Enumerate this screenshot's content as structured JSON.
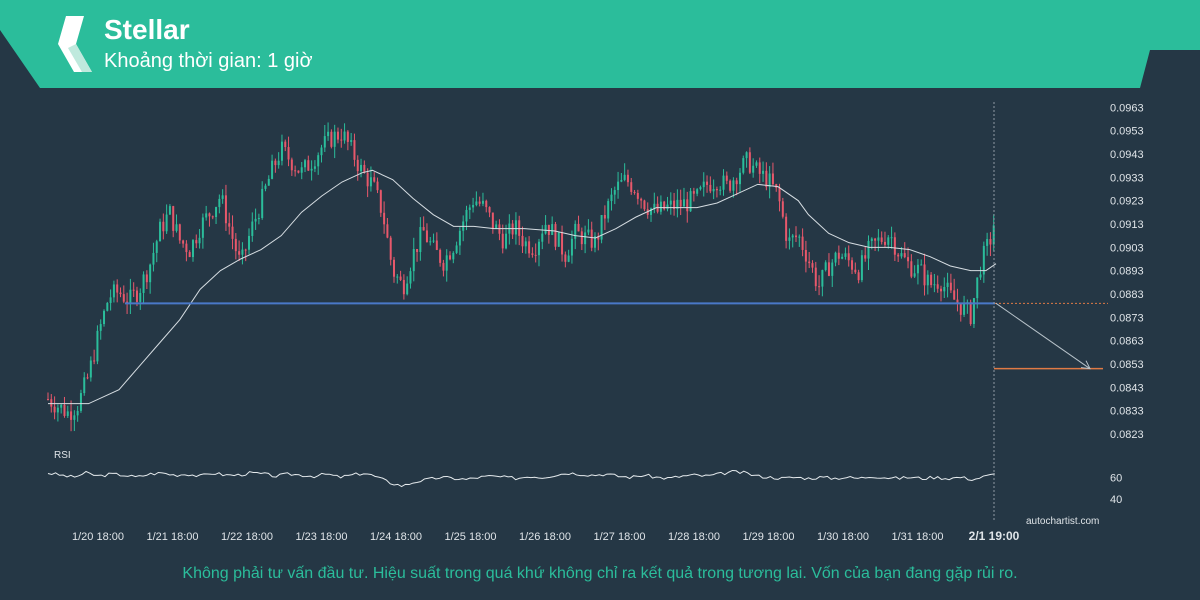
{
  "header": {
    "title": "Stellar",
    "subtitle": "Khoảng thời gian: 1 giờ",
    "brand_color": "#2bbd9b",
    "logo": "stellar-logo-icon"
  },
  "disclaimer": "Không phải tư vấn đầu tư. Hiệu suất trong quá khứ không chỉ ra kết quả trong tương lai. Vốn của bạn đang gặp rủi ro.",
  "watermark": "autochartist.com",
  "colors": {
    "background": "#253745",
    "bull": "#2bbd9b",
    "bear": "#e8586b",
    "ma_line": "#d6dde2",
    "support_line": "#4a78c8",
    "target_line": "#e07a45",
    "forecast_arrow": "#b8c3ca"
  },
  "chart_data": {
    "type": "candlestick",
    "title": "",
    "ylim": [
      0.0817,
      0.0967
    ],
    "y_ticks": [
      "0.0963",
      "0.0953",
      "0.0943",
      "0.0933",
      "0.0923",
      "0.0913",
      "0.0903",
      "0.0893",
      "0.0883",
      "0.0873",
      "0.0863",
      "0.0853",
      "0.0843",
      "0.0833",
      "0.0823"
    ],
    "x_ticks": [
      "1/20 18:00",
      "1/21 18:00",
      "1/22 18:00",
      "1/23 18:00",
      "1/24 18:00",
      "1/25 18:00",
      "1/26 18:00",
      "1/27 18:00",
      "1/28 18:00",
      "1/29 18:00",
      "1/30 18:00",
      "1/31 18:00",
      "2/1 19:00"
    ],
    "highlight_x_label": "2/1 19:00",
    "price_path": [
      {
        "x": 0,
        "y": 0.0838
      },
      {
        "x": 8,
        "y": 0.0835
      },
      {
        "x": 16,
        "y": 0.0832
      },
      {
        "x": 24,
        "y": 0.0836
      },
      {
        "x": 32,
        "y": 0.0848
      },
      {
        "x": 40,
        "y": 0.0866
      },
      {
        "x": 48,
        "y": 0.0882
      },
      {
        "x": 56,
        "y": 0.0884
      },
      {
        "x": 64,
        "y": 0.088
      },
      {
        "x": 72,
        "y": 0.0885
      },
      {
        "x": 80,
        "y": 0.0895
      },
      {
        "x": 88,
        "y": 0.091
      },
      {
        "x": 96,
        "y": 0.0918
      },
      {
        "x": 104,
        "y": 0.0906
      },
      {
        "x": 112,
        "y": 0.0902
      },
      {
        "x": 120,
        "y": 0.0912
      },
      {
        "x": 128,
        "y": 0.0918
      },
      {
        "x": 136,
        "y": 0.0925
      },
      {
        "x": 144,
        "y": 0.091
      },
      {
        "x": 152,
        "y": 0.0895
      },
      {
        "x": 160,
        "y": 0.091
      },
      {
        "x": 168,
        "y": 0.0922
      },
      {
        "x": 176,
        "y": 0.0935
      },
      {
        "x": 184,
        "y": 0.0945
      },
      {
        "x": 192,
        "y": 0.094
      },
      {
        "x": 200,
        "y": 0.0935
      },
      {
        "x": 208,
        "y": 0.094
      },
      {
        "x": 216,
        "y": 0.0946
      },
      {
        "x": 224,
        "y": 0.095
      },
      {
        "x": 232,
        "y": 0.0952
      },
      {
        "x": 240,
        "y": 0.0944
      },
      {
        "x": 248,
        "y": 0.0935
      },
      {
        "x": 256,
        "y": 0.093
      },
      {
        "x": 264,
        "y": 0.0918
      },
      {
        "x": 272,
        "y": 0.0893
      },
      {
        "x": 280,
        "y": 0.0886
      },
      {
        "x": 288,
        "y": 0.09
      },
      {
        "x": 296,
        "y": 0.091
      },
      {
        "x": 304,
        "y": 0.0902
      },
      {
        "x": 312,
        "y": 0.0897
      },
      {
        "x": 320,
        "y": 0.0904
      },
      {
        "x": 328,
        "y": 0.0915
      },
      {
        "x": 336,
        "y": 0.0924
      },
      {
        "x": 344,
        "y": 0.092
      },
      {
        "x": 352,
        "y": 0.0912
      },
      {
        "x": 360,
        "y": 0.0906
      },
      {
        "x": 368,
        "y": 0.0912
      },
      {
        "x": 376,
        "y": 0.0905
      },
      {
        "x": 384,
        "y": 0.0903
      },
      {
        "x": 392,
        "y": 0.0914
      },
      {
        "x": 400,
        "y": 0.0908
      },
      {
        "x": 408,
        "y": 0.09
      },
      {
        "x": 416,
        "y": 0.0909
      },
      {
        "x": 424,
        "y": 0.0907
      },
      {
        "x": 432,
        "y": 0.0905
      },
      {
        "x": 440,
        "y": 0.0918
      },
      {
        "x": 448,
        "y": 0.0928
      },
      {
        "x": 456,
        "y": 0.0932
      },
      {
        "x": 464,
        "y": 0.0928
      },
      {
        "x": 472,
        "y": 0.0921
      },
      {
        "x": 480,
        "y": 0.0918
      },
      {
        "x": 488,
        "y": 0.092
      },
      {
        "x": 496,
        "y": 0.0921
      },
      {
        "x": 504,
        "y": 0.0922
      },
      {
        "x": 512,
        "y": 0.0924
      },
      {
        "x": 520,
        "y": 0.093
      },
      {
        "x": 528,
        "y": 0.0932
      },
      {
        "x": 536,
        "y": 0.0929
      },
      {
        "x": 544,
        "y": 0.0935
      },
      {
        "x": 552,
        "y": 0.094
      },
      {
        "x": 560,
        "y": 0.0935
      },
      {
        "x": 568,
        "y": 0.0932
      },
      {
        "x": 576,
        "y": 0.0925
      },
      {
        "x": 584,
        "y": 0.0905
      },
      {
        "x": 592,
        "y": 0.0908
      },
      {
        "x": 600,
        "y": 0.0898
      },
      {
        "x": 608,
        "y": 0.0886
      },
      {
        "x": 616,
        "y": 0.0895
      },
      {
        "x": 624,
        "y": 0.09
      },
      {
        "x": 632,
        "y": 0.0897
      },
      {
        "x": 640,
        "y": 0.0893
      },
      {
        "x": 648,
        "y": 0.0902
      },
      {
        "x": 656,
        "y": 0.0906
      },
      {
        "x": 664,
        "y": 0.0909
      },
      {
        "x": 672,
        "y": 0.09
      },
      {
        "x": 680,
        "y": 0.0895
      },
      {
        "x": 688,
        "y": 0.0893
      },
      {
        "x": 696,
        "y": 0.0887
      },
      {
        "x": 704,
        "y": 0.0889
      },
      {
        "x": 712,
        "y": 0.0882
      },
      {
        "x": 720,
        "y": 0.0878
      },
      {
        "x": 728,
        "y": 0.0874
      },
      {
        "x": 736,
        "y": 0.0896
      },
      {
        "x": 744,
        "y": 0.0907
      },
      {
        "x": 748,
        "y": 0.0918
      }
    ],
    "moving_average": [
      {
        "x": 0,
        "y": 0.0836
      },
      {
        "x": 32,
        "y": 0.0836
      },
      {
        "x": 56,
        "y": 0.0842
      },
      {
        "x": 72,
        "y": 0.0852
      },
      {
        "x": 88,
        "y": 0.0862
      },
      {
        "x": 104,
        "y": 0.0872
      },
      {
        "x": 120,
        "y": 0.0885
      },
      {
        "x": 136,
        "y": 0.0893
      },
      {
        "x": 152,
        "y": 0.0898
      },
      {
        "x": 168,
        "y": 0.0902
      },
      {
        "x": 184,
        "y": 0.0908
      },
      {
        "x": 200,
        "y": 0.0918
      },
      {
        "x": 216,
        "y": 0.0925
      },
      {
        "x": 232,
        "y": 0.0931
      },
      {
        "x": 248,
        "y": 0.0935
      },
      {
        "x": 256,
        "y": 0.0936
      },
      {
        "x": 272,
        "y": 0.0932
      },
      {
        "x": 288,
        "y": 0.0924
      },
      {
        "x": 304,
        "y": 0.0917
      },
      {
        "x": 320,
        "y": 0.0912
      },
      {
        "x": 336,
        "y": 0.0912
      },
      {
        "x": 352,
        "y": 0.0911
      },
      {
        "x": 376,
        "y": 0.0911
      },
      {
        "x": 400,
        "y": 0.091
      },
      {
        "x": 416,
        "y": 0.0908
      },
      {
        "x": 432,
        "y": 0.0907
      },
      {
        "x": 448,
        "y": 0.0911
      },
      {
        "x": 464,
        "y": 0.0916
      },
      {
        "x": 480,
        "y": 0.092
      },
      {
        "x": 496,
        "y": 0.092
      },
      {
        "x": 512,
        "y": 0.092
      },
      {
        "x": 528,
        "y": 0.0922
      },
      {
        "x": 544,
        "y": 0.0926
      },
      {
        "x": 560,
        "y": 0.093
      },
      {
        "x": 576,
        "y": 0.0929
      },
      {
        "x": 592,
        "y": 0.0923
      },
      {
        "x": 600,
        "y": 0.0917
      },
      {
        "x": 616,
        "y": 0.0909
      },
      {
        "x": 632,
        "y": 0.0905
      },
      {
        "x": 648,
        "y": 0.0903
      },
      {
        "x": 664,
        "y": 0.0903
      },
      {
        "x": 680,
        "y": 0.0902
      },
      {
        "x": 696,
        "y": 0.0899
      },
      {
        "x": 712,
        "y": 0.0895
      },
      {
        "x": 728,
        "y": 0.0893
      },
      {
        "x": 740,
        "y": 0.0893
      },
      {
        "x": 748,
        "y": 0.0896
      }
    ],
    "support_level": 0.0879,
    "target_level": 0.0851,
    "rsi": {
      "label": "RSI",
      "ticks": [
        "60",
        "40"
      ],
      "ylim": [
        30,
        85
      ],
      "values": [
        {
          "x": 0,
          "y": 64
        },
        {
          "x": 10,
          "y": 62
        },
        {
          "x": 20,
          "y": 60
        },
        {
          "x": 30,
          "y": 64
        },
        {
          "x": 40,
          "y": 61
        },
        {
          "x": 50,
          "y": 63
        },
        {
          "x": 60,
          "y": 62
        },
        {
          "x": 70,
          "y": 60
        },
        {
          "x": 80,
          "y": 63
        },
        {
          "x": 90,
          "y": 64
        },
        {
          "x": 100,
          "y": 62
        },
        {
          "x": 110,
          "y": 63
        },
        {
          "x": 120,
          "y": 61
        },
        {
          "x": 130,
          "y": 64
        },
        {
          "x": 140,
          "y": 62
        },
        {
          "x": 150,
          "y": 62
        },
        {
          "x": 160,
          "y": 64
        },
        {
          "x": 170,
          "y": 63
        },
        {
          "x": 180,
          "y": 61
        },
        {
          "x": 190,
          "y": 63
        },
        {
          "x": 200,
          "y": 62
        },
        {
          "x": 210,
          "y": 61
        },
        {
          "x": 220,
          "y": 63
        },
        {
          "x": 230,
          "y": 60
        },
        {
          "x": 240,
          "y": 62
        },
        {
          "x": 250,
          "y": 64
        },
        {
          "x": 260,
          "y": 60
        },
        {
          "x": 270,
          "y": 55
        },
        {
          "x": 280,
          "y": 52
        },
        {
          "x": 290,
          "y": 56
        },
        {
          "x": 300,
          "y": 58
        },
        {
          "x": 310,
          "y": 60
        },
        {
          "x": 320,
          "y": 59
        },
        {
          "x": 330,
          "y": 58
        },
        {
          "x": 340,
          "y": 60
        },
        {
          "x": 350,
          "y": 61
        },
        {
          "x": 360,
          "y": 60
        },
        {
          "x": 370,
          "y": 59
        },
        {
          "x": 380,
          "y": 61
        },
        {
          "x": 390,
          "y": 60
        },
        {
          "x": 400,
          "y": 62
        },
        {
          "x": 410,
          "y": 64
        },
        {
          "x": 420,
          "y": 63
        },
        {
          "x": 430,
          "y": 62
        },
        {
          "x": 440,
          "y": 63
        },
        {
          "x": 450,
          "y": 61
        },
        {
          "x": 460,
          "y": 60
        },
        {
          "x": 470,
          "y": 62
        },
        {
          "x": 480,
          "y": 60
        },
        {
          "x": 490,
          "y": 59
        },
        {
          "x": 500,
          "y": 61
        },
        {
          "x": 510,
          "y": 62
        },
        {
          "x": 520,
          "y": 61
        },
        {
          "x": 530,
          "y": 63
        },
        {
          "x": 540,
          "y": 65
        },
        {
          "x": 550,
          "y": 64
        },
        {
          "x": 560,
          "y": 61
        },
        {
          "x": 570,
          "y": 60
        },
        {
          "x": 580,
          "y": 59
        },
        {
          "x": 590,
          "y": 60
        },
        {
          "x": 600,
          "y": 59
        },
        {
          "x": 610,
          "y": 60
        },
        {
          "x": 620,
          "y": 59
        },
        {
          "x": 630,
          "y": 60
        },
        {
          "x": 640,
          "y": 59
        },
        {
          "x": 650,
          "y": 61
        },
        {
          "x": 660,
          "y": 60
        },
        {
          "x": 670,
          "y": 59
        },
        {
          "x": 680,
          "y": 60
        },
        {
          "x": 690,
          "y": 59
        },
        {
          "x": 700,
          "y": 60
        },
        {
          "x": 710,
          "y": 59
        },
        {
          "x": 720,
          "y": 60
        },
        {
          "x": 730,
          "y": 58
        },
        {
          "x": 740,
          "y": 61
        },
        {
          "x": 748,
          "y": 63
        }
      ]
    }
  }
}
